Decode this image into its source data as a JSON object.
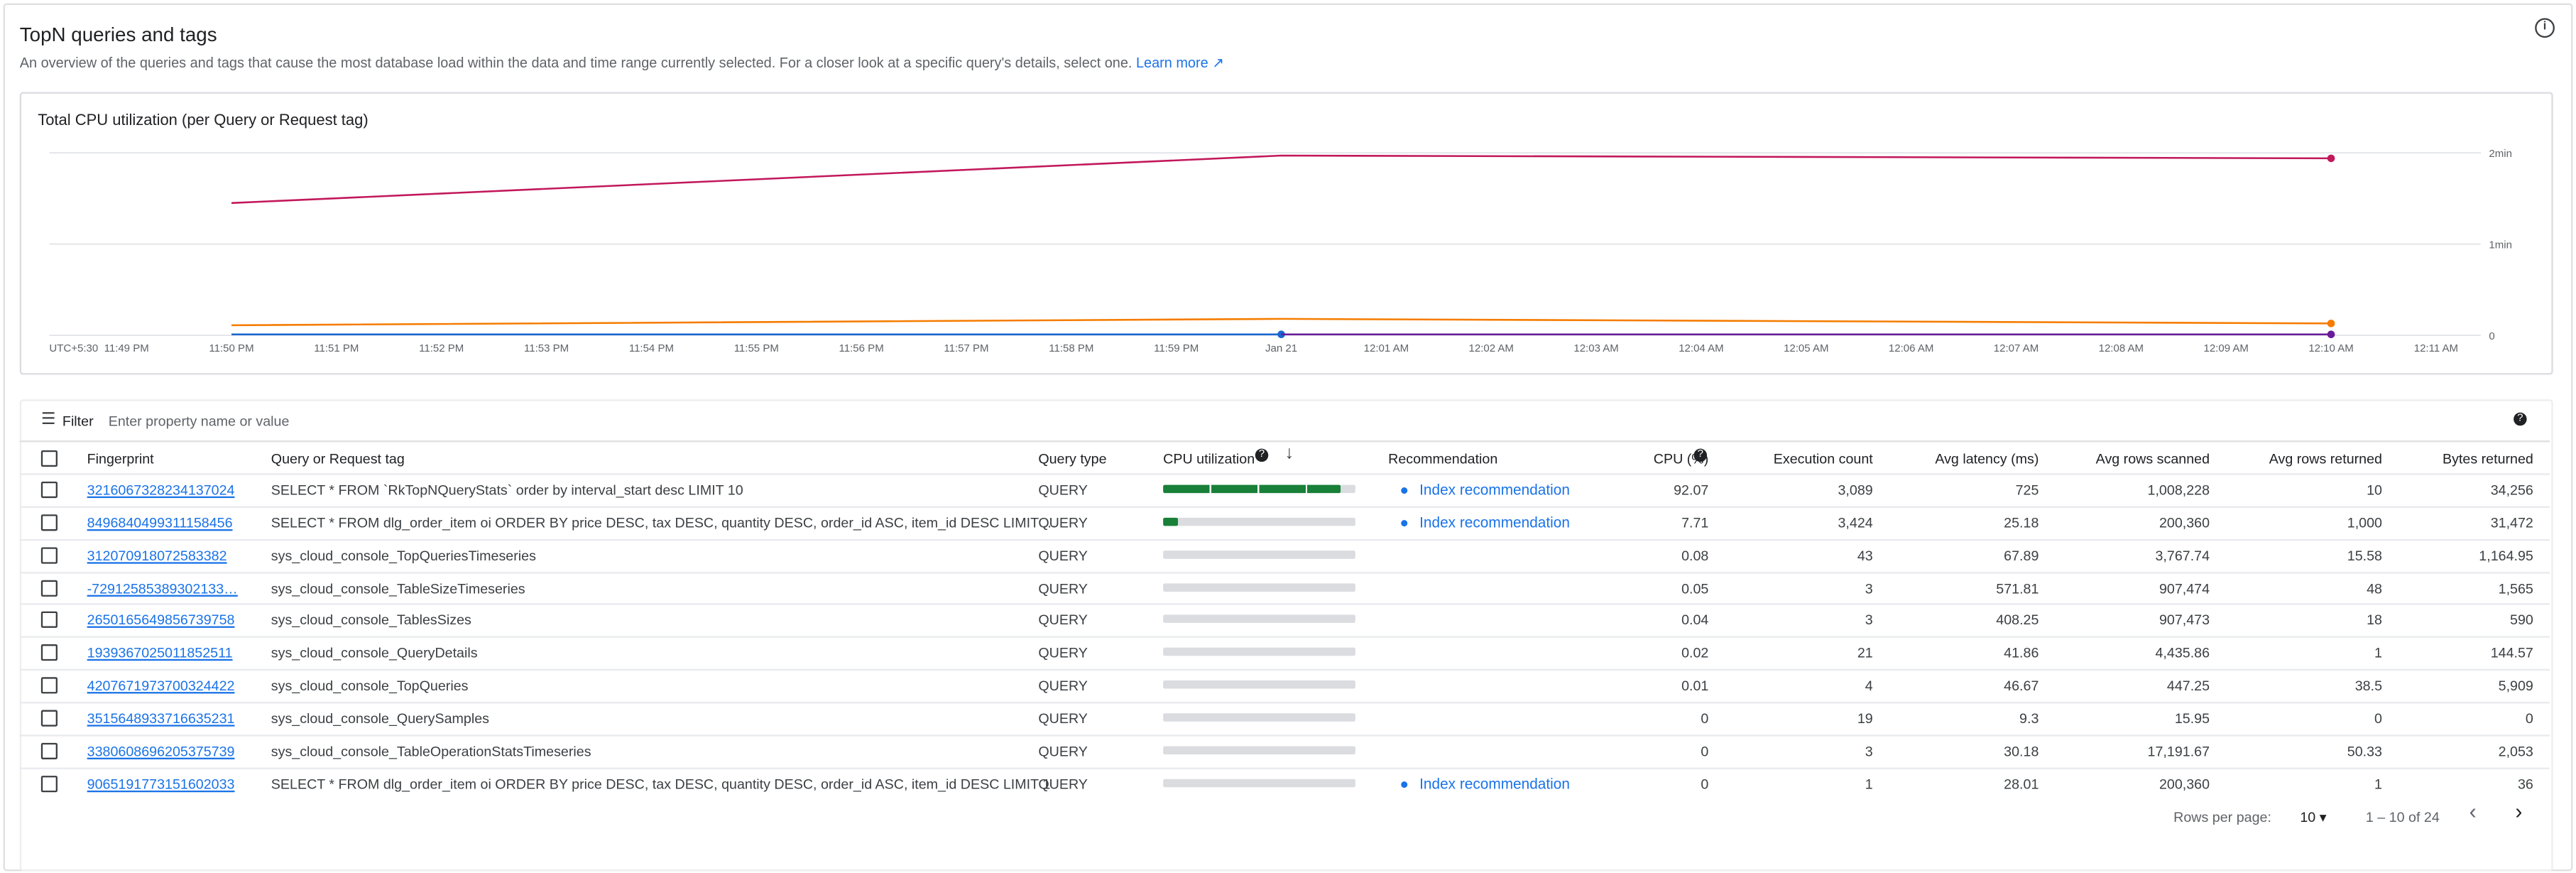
{
  "header": {
    "title": "TopN queries and tags",
    "description": "An overview of the queries and tags that cause the most database load within the data and time range currently selected. For a closer look at a specific query's details, select one.",
    "learn_more": "Learn more"
  },
  "chart_data": {
    "type": "line",
    "title": "Total CPU utilization (per Query or Request tag)",
    "timezone": "UTC+5:30",
    "categories": [
      "11:49 PM",
      "11:50 PM",
      "11:51 PM",
      "11:52 PM",
      "11:53 PM",
      "11:54 PM",
      "11:55 PM",
      "11:56 PM",
      "11:57 PM",
      "11:58 PM",
      "11:59 PM",
      "Jan 21",
      "12:01 AM",
      "12:02 AM",
      "12:03 AM",
      "12:04 AM",
      "12:05 AM",
      "12:06 AM",
      "12:07 AM",
      "12:08 AM",
      "12:09 AM",
      "12:10 AM",
      "12:11 AM"
    ],
    "ylim": [
      0,
      2
    ],
    "yticks": [
      0,
      {
        "value": 1,
        "label": "1min"
      },
      {
        "value": 2,
        "label": "2min"
      }
    ],
    "grid": true,
    "series": [
      {
        "color": "#c2185b",
        "x": [
          "11:50 PM",
          "Jan 21",
          "12:10 AM"
        ],
        "values": [
          1.45,
          1.97,
          1.94
        ]
      },
      {
        "color": "#f57c00",
        "x": [
          "11:50 PM",
          "Jan 21",
          "12:10 AM"
        ],
        "values": [
          0.11,
          0.18,
          0.13
        ]
      },
      {
        "color": "#1967d2",
        "x": [
          "11:50 PM",
          "Jan 21"
        ],
        "values": [
          0.01,
          0.01
        ]
      },
      {
        "color": "#6a1b9a",
        "x": [
          "Jan 21",
          "12:10 AM"
        ],
        "values": [
          0.01,
          0.01
        ]
      }
    ]
  },
  "filter": {
    "label": "Filter",
    "placeholder": "Enter property name or value"
  },
  "table": {
    "columns": [
      "Fingerprint",
      "Query or Request tag",
      "Query type",
      "CPU utilization",
      "Recommendation",
      "CPU (%)",
      "Execution count",
      "Avg latency (ms)",
      "Avg rows scanned",
      "Avg rows returned",
      "Bytes returned"
    ],
    "rows": [
      [
        "3216067328234137024",
        "SELECT * FROM `RkTopNQueryStats` order by interval_start desc LIMIT 10",
        "QUERY",
        "Index recommendation",
        92.07,
        "3,089",
        "725",
        "1,008,228",
        "10",
        "34,256"
      ],
      [
        "8496840499311158456",
        "SELECT * FROM dlg_order_item oi ORDER BY price DESC, tax DESC, quantity DESC, order_id ASC, item_id DESC LIMIT …",
        "QUERY",
        "Index recommendation",
        7.71,
        "3,424",
        "25.18",
        "200,360",
        "1,000",
        "31,472"
      ],
      [
        "312070918072583382",
        "sys_cloud_console_TopQueriesTimeseries",
        "QUERY",
        null,
        0.08,
        "43",
        "67.89",
        "3,767.74",
        "15.58",
        "1,164.95"
      ],
      [
        "-72912585389302133…",
        "sys_cloud_console_TableSizeTimeseries",
        "QUERY",
        null,
        0.05,
        "3",
        "571.81",
        "907,474",
        "48",
        "1,565"
      ],
      [
        "2650165649856739758",
        "sys_cloud_console_TablesSizes",
        "QUERY",
        null,
        0.04,
        "3",
        "408.25",
        "907,473",
        "18",
        "590"
      ],
      [
        "1939367025011852511",
        "sys_cloud_console_QueryDetails",
        "QUERY",
        null,
        0.02,
        "21",
        "41.86",
        "4,435.86",
        "1",
        "144.57"
      ],
      [
        "4207671973700324422",
        "sys_cloud_console_TopQueries",
        "QUERY",
        null,
        0.01,
        "4",
        "46.67",
        "447.25",
        "38.5",
        "5,909"
      ],
      [
        "3515648933716635231",
        "sys_cloud_console_QuerySamples",
        "QUERY",
        null,
        0,
        "19",
        "9.3",
        "15.95",
        "0",
        "0"
      ],
      [
        "3380608696205375739",
        "sys_cloud_console_TableOperationStatsTimeseries",
        "QUERY",
        null,
        0,
        "3",
        "30.18",
        "17,191.67",
        "50.33",
        "2,053"
      ],
      [
        "9065191773151602033",
        "SELECT * FROM dlg_order_item oi ORDER BY price DESC, tax DESC, quantity DESC, order_id ASC, item_id DESC LIMIT 1",
        "QUERY",
        "Index recommendation",
        0,
        "1",
        "28.01",
        "200,360",
        "1",
        "36"
      ]
    ]
  },
  "pagination": {
    "rows_per_page_label": "Rows per page:",
    "rows_per_page": "10",
    "range": "1 – 10 of 24"
  }
}
